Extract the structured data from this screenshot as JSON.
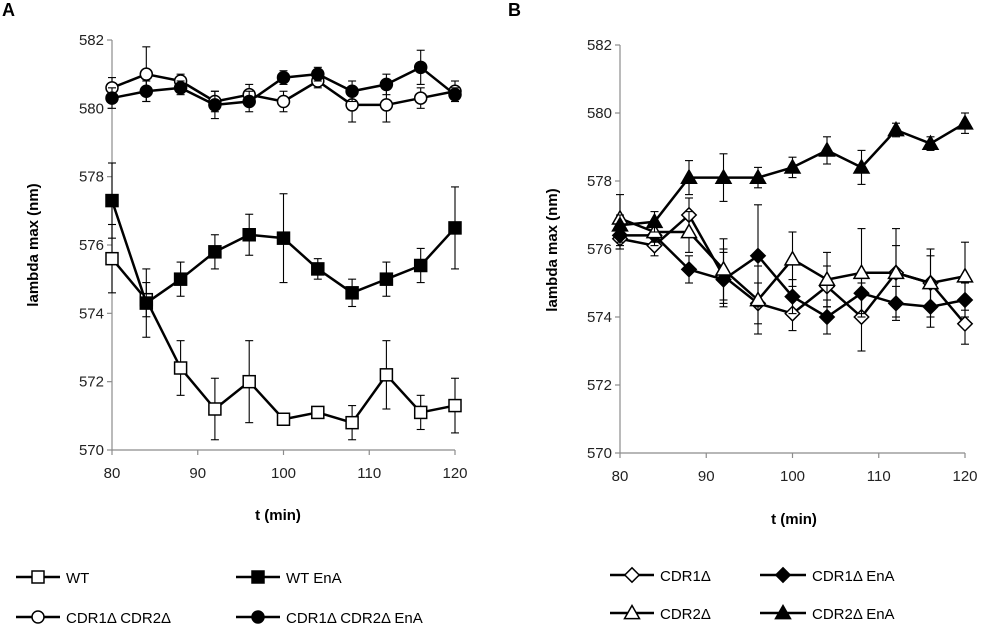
{
  "chart_data": [
    {
      "panel": "A",
      "type": "line",
      "xlabel": "t (min)",
      "ylabel": "lambda max (nm)",
      "xlim": [
        80,
        120
      ],
      "ylim": [
        570,
        582
      ],
      "xticks": [
        80,
        90,
        100,
        110,
        120
      ],
      "yticks": [
        570,
        572,
        574,
        576,
        578,
        580,
        582
      ],
      "x": [
        80,
        84,
        88,
        92,
        96,
        100,
        104,
        108,
        112,
        116,
        120
      ],
      "series": [
        {
          "name": "WT",
          "marker": "square",
          "fill": "open",
          "values": [
            575.6,
            574.4,
            572.4,
            571.2,
            572.0,
            570.9,
            571.1,
            570.8,
            572.2,
            571.1,
            571.3
          ],
          "errors": [
            1.0,
            0.5,
            0.8,
            0.9,
            1.2,
            0.0,
            0.0,
            0.5,
            1.0,
            0.5,
            0.8
          ]
        },
        {
          "name": "WT EnA",
          "marker": "square",
          "fill": "solid",
          "values": [
            577.3,
            574.3,
            575.0,
            575.8,
            576.3,
            576.2,
            575.3,
            574.6,
            575.0,
            575.4,
            576.5
          ],
          "errors": [
            1.1,
            1.0,
            0.5,
            0.5,
            0.6,
            1.3,
            0.3,
            0.4,
            0.5,
            0.5,
            1.2
          ]
        },
        {
          "name": "CDR1Δ CDR2Δ",
          "marker": "circle",
          "fill": "open",
          "values": [
            580.6,
            581.0,
            580.8,
            580.2,
            580.4,
            580.2,
            580.8,
            580.1,
            580.1,
            580.3,
            580.5
          ],
          "errors": [
            0.3,
            0.8,
            0.2,
            0.3,
            0.3,
            0.3,
            0.2,
            0.5,
            0.5,
            0.3,
            0.3
          ]
        },
        {
          "name": "CDR1Δ CDR2Δ EnA",
          "marker": "circle",
          "fill": "solid",
          "values": [
            580.3,
            580.5,
            580.6,
            580.1,
            580.2,
            580.9,
            581.0,
            580.5,
            580.7,
            581.2,
            580.4
          ],
          "errors": [
            0.3,
            0.3,
            0.2,
            0.4,
            0.3,
            0.2,
            0.2,
            0.3,
            0.3,
            0.5,
            0.2
          ]
        }
      ]
    },
    {
      "panel": "B",
      "type": "line",
      "xlabel": "t (min)",
      "ylabel": "lambda max (nm)",
      "xlim": [
        80,
        120
      ],
      "ylim": [
        570,
        582
      ],
      "xticks": [
        80,
        90,
        100,
        110,
        120
      ],
      "yticks": [
        570,
        572,
        574,
        576,
        578,
        580,
        582
      ],
      "x": [
        80,
        84,
        88,
        92,
        96,
        100,
        104,
        108,
        112,
        116,
        120
      ],
      "series": [
        {
          "name": "CDR1Δ",
          "marker": "diamond",
          "fill": "open",
          "values": [
            576.3,
            576.1,
            577.0,
            575.2,
            574.4,
            574.1,
            574.9,
            574.0,
            575.3,
            575.0,
            573.8
          ],
          "errors": [
            0.3,
            0.3,
            0.5,
            0.8,
            0.6,
            0.5,
            0.6,
            1.0,
            0.8,
            0.8,
            0.6
          ]
        },
        {
          "name": "CDR1Δ EnA",
          "marker": "diamond",
          "fill": "solid",
          "values": [
            576.4,
            576.4,
            575.4,
            575.1,
            575.8,
            574.6,
            574.0,
            574.7,
            574.4,
            574.3,
            574.5
          ],
          "errors": [
            0.3,
            0.3,
            0.4,
            0.8,
            1.5,
            0.5,
            0.5,
            0.6,
            0.5,
            0.6,
            0.5
          ]
        },
        {
          "name": "CDR2Δ",
          "marker": "triangle",
          "fill": "open",
          "values": [
            576.9,
            576.5,
            576.5,
            575.4,
            574.5,
            575.7,
            575.1,
            575.3,
            575.3,
            575.0,
            575.2
          ],
          "errors": [
            0.7,
            0.3,
            0.6,
            0.9,
            1.0,
            0.8,
            0.8,
            1.3,
            1.3,
            1.0,
            1.0
          ]
        },
        {
          "name": "CDR2Δ EnA",
          "marker": "triangle",
          "fill": "solid",
          "values": [
            576.7,
            576.8,
            578.1,
            578.1,
            578.1,
            578.4,
            578.9,
            578.4,
            579.5,
            579.1,
            579.7
          ],
          "errors": [
            0.3,
            0.3,
            0.5,
            0.7,
            0.3,
            0.3,
            0.4,
            0.5,
            0.2,
            0.2,
            0.3
          ]
        }
      ]
    }
  ]
}
